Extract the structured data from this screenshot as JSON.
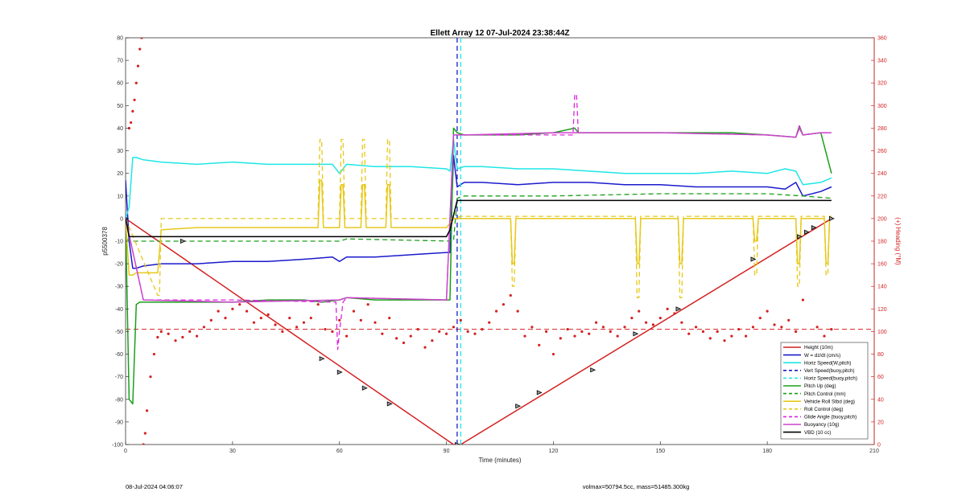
{
  "chart_data": {
    "type": "line",
    "title": "Ellett Array 12 07-Jul-2024 23:38:44Z",
    "xlabel": "Time (minutes)",
    "ylabel_left": "p5500378",
    "ylabel_right": "(+) Heading (°M)",
    "xlim": [
      0,
      210
    ],
    "ylim_left": [
      -100,
      80
    ],
    "ylim_right": [
      0,
      360
    ],
    "x_ticks": [
      "0",
      "30",
      "60",
      "90",
      "120",
      "150",
      "180",
      "210"
    ],
    "y_ticks_left": [
      "80",
      "70",
      "60",
      "50",
      "40",
      "30",
      "20",
      "10",
      "0",
      "-10",
      "-20",
      "-30",
      "-40",
      "-50",
      "-60",
      "-70",
      "-80",
      "-90",
      "-100"
    ],
    "y_ticks_right": [
      "360",
      "340",
      "320",
      "300",
      "280",
      "260",
      "240",
      "220",
      "200",
      "180",
      "160",
      "140",
      "120",
      "100",
      "80",
      "60",
      "40",
      "20",
      "0"
    ],
    "grid": false,
    "legend_position": "bottom-right",
    "colors": {
      "height": "#d42020",
      "w": "#1a1acc",
      "horiz_speed": "#1ee6e6",
      "pitch": "#1aa01a",
      "roll": "#e6c81a",
      "glide": "#dd22dd",
      "buoyancy": "#cc44cc",
      "vbd": "#000000",
      "heading": "#d42020"
    },
    "series": [
      {
        "name": "Height (10m)",
        "style": "solid",
        "color_key": "height",
        "x": [
          0,
          92,
          94,
          198
        ],
        "y": [
          0,
          -100,
          -100,
          0
        ]
      },
      {
        "name": "W = dz/dt (cm/s)",
        "style": "solid",
        "color_key": "w",
        "x": [
          0,
          1,
          2,
          3,
          5,
          10,
          20,
          30,
          40,
          50,
          58,
          60,
          62,
          70,
          80,
          90,
          91,
          92,
          93,
          95,
          100,
          110,
          120,
          130,
          140,
          150,
          160,
          170,
          180,
          185,
          188,
          190,
          195,
          198
        ],
        "y": [
          17,
          -10,
          -22,
          -22,
          -21,
          -20,
          -20,
          -19,
          -19,
          -18,
          -17,
          -19,
          -17,
          -17,
          -16,
          -15,
          -15,
          28,
          14,
          16,
          16,
          15,
          16,
          16,
          15,
          15,
          14,
          14,
          14,
          13,
          16,
          10,
          12,
          14
        ]
      },
      {
        "name": "Vert Speed(buoy,pitch)",
        "style": "dashed",
        "color_key": "w",
        "x": [
          93,
          93
        ],
        "y": [
          80,
          -100
        ]
      },
      {
        "name": "Horiz Speed(W,pitch)",
        "style": "solid",
        "color_key": "horiz_speed",
        "x": [
          0,
          1,
          2,
          3,
          5,
          10,
          20,
          30,
          40,
          50,
          58,
          60,
          62,
          70,
          80,
          90,
          91,
          92,
          93,
          95,
          100,
          110,
          120,
          130,
          140,
          150,
          160,
          170,
          180,
          185,
          188,
          190,
          195,
          198
        ],
        "y": [
          0,
          5,
          27,
          27,
          26,
          25,
          24,
          25,
          24,
          24,
          24,
          20,
          24,
          23,
          23,
          22,
          21,
          35,
          22,
          23,
          23,
          22,
          22,
          21,
          20,
          20,
          20,
          21,
          20,
          22,
          21,
          15,
          16,
          18
        ]
      },
      {
        "name": "Horiz Speed(buoy,pitch)",
        "style": "dashed",
        "color_key": "horiz_speed",
        "x": [
          94,
          94
        ],
        "y": [
          80,
          -100
        ]
      },
      {
        "name": "Pitch Up (deg)",
        "style": "solid",
        "color_key": "pitch",
        "x": [
          0,
          1,
          2,
          3,
          4,
          5,
          10,
          20,
          30,
          40,
          50,
          55,
          60,
          62,
          70,
          80,
          90,
          91,
          92,
          93,
          95,
          100,
          110,
          120,
          126,
          127,
          130,
          140,
          150,
          160,
          170,
          180,
          188,
          189,
          190,
          195,
          198
        ],
        "y": [
          0,
          -80,
          -82,
          -38,
          -37,
          -37,
          -37,
          -37,
          -37,
          -36,
          -36,
          -37,
          -36,
          -35,
          -36,
          -36,
          -36,
          -36,
          40,
          38,
          37,
          37,
          37,
          38,
          40,
          38,
          38,
          38,
          38,
          38,
          38,
          37,
          36,
          41,
          37,
          38,
          20
        ]
      },
      {
        "name": "Pitch Control (mm)",
        "style": "dashed",
        "color_key": "pitch",
        "x": [
          0,
          2,
          10,
          30,
          60,
          62,
          92,
          93,
          95,
          120,
          150,
          180,
          190,
          198
        ],
        "y": [
          -9,
          -10,
          -10,
          -10,
          -10,
          -9,
          -10,
          9,
          10,
          10,
          11,
          11,
          10,
          9
        ]
      },
      {
        "name": "Vehicle Roll Stbd (deg)",
        "style": "solid",
        "color_key": "roll",
        "x": [
          0,
          1,
          2,
          3,
          5,
          9,
          10,
          20,
          50,
          54,
          54.5,
          55,
          55.5,
          60,
          60.5,
          61,
          61.5,
          66,
          66.5,
          67,
          67.5,
          73,
          73.5,
          74,
          74.5,
          90,
          92,
          95,
          108,
          108.5,
          109,
          109.5,
          143,
          143.5,
          144,
          144.5,
          155,
          155.5,
          156,
          156.5,
          176,
          176.5,
          177,
          177.5,
          188,
          188.5,
          189,
          189.5,
          196,
          196.5,
          197,
          197.5,
          198
        ],
        "y": [
          0,
          -25,
          -25,
          -24,
          -24,
          -24,
          -5,
          -4,
          -4,
          -4,
          17,
          17,
          -4,
          -4,
          15,
          15,
          -4,
          -4,
          15,
          15,
          -4,
          -4,
          15,
          15,
          -4,
          -4,
          0,
          0,
          0,
          -20,
          -20,
          0,
          0,
          -20,
          -20,
          0,
          0,
          -20,
          -20,
          0,
          0,
          -10,
          -10,
          0,
          0,
          -20,
          -20,
          0,
          0,
          -20,
          -20,
          0,
          0
        ]
      },
      {
        "name": "Roll Control (deg)",
        "style": "dashed",
        "color_key": "roll",
        "x": [
          0,
          9,
          9.5,
          10,
          54,
          54.5,
          55,
          55.5,
          60,
          60.5,
          61,
          61.5,
          66,
          66.5,
          67,
          67.5,
          73,
          73.5,
          74,
          74.5,
          92,
          94,
          108,
          108.5,
          109,
          109.5,
          143,
          143.5,
          144,
          144.5,
          155,
          155.5,
          156,
          156.5,
          176,
          176.5,
          177,
          177.5,
          188,
          188.5,
          189,
          189.5,
          196,
          196.5,
          197,
          197.5,
          198
        ],
        "y": [
          0,
          -34,
          -34,
          0,
          0,
          35,
          35,
          0,
          0,
          35,
          35,
          0,
          0,
          35,
          35,
          0,
          0,
          35,
          35,
          0,
          0,
          1,
          1,
          -30,
          -30,
          1,
          1,
          -35,
          -35,
          1,
          1,
          -35,
          -35,
          1,
          1,
          -25,
          -25,
          1,
          1,
          -30,
          -30,
          1,
          1,
          -25,
          -25,
          1,
          1
        ]
      },
      {
        "name": "Glide Angle (buoy,pitch)",
        "style": "dashed",
        "color_key": "glide",
        "x": [
          0,
          5,
          30,
          59,
          59.5,
          60,
          61,
          62,
          90,
          92,
          95,
          120,
          125.5,
          126,
          126.5,
          127,
          150,
          180,
          188,
          189,
          190,
          195,
          198
        ],
        "y": [
          0,
          -36,
          -36,
          -37,
          -58,
          -50,
          -37,
          -35,
          -36,
          37,
          37,
          37,
          37,
          55,
          55,
          38,
          38,
          37,
          36,
          41,
          37,
          38,
          38
        ]
      },
      {
        "name": "Buoyancy (10g)",
        "style": "solid",
        "color_key": "buoyancy",
        "x": [
          0,
          5,
          30,
          60,
          62,
          90,
          92,
          95,
          120,
          150,
          180,
          188,
          189,
          190,
          195,
          198
        ],
        "y": [
          0,
          -36,
          -37,
          -36,
          -35,
          -36,
          37,
          37,
          38,
          38,
          37,
          36,
          40,
          37,
          38,
          38
        ]
      },
      {
        "name": "VBD (10 cc)",
        "style": "solid",
        "color_key": "vbd",
        "x": [
          0,
          1,
          2,
          50,
          90,
          91,
          93,
          120,
          150,
          180,
          198
        ],
        "y": [
          0,
          -8,
          -8,
          -8,
          -8,
          -5,
          8,
          8,
          8,
          8,
          8
        ]
      }
    ],
    "heading_scatter": {
      "axis": "right",
      "color_key": "heading",
      "x": [
        1,
        1.5,
        2,
        2.5,
        3,
        3.5,
        4,
        4.5,
        5,
        5.5,
        6,
        7,
        8,
        9,
        10,
        12,
        14,
        16,
        18,
        20,
        22,
        24,
        26,
        28,
        30,
        32,
        34,
        36,
        38,
        40,
        42,
        44,
        46,
        48,
        50,
        52,
        54,
        56,
        58,
        60,
        62,
        64,
        66,
        68,
        70,
        72,
        74,
        76,
        78,
        80,
        82,
        84,
        86,
        88,
        90,
        92,
        94,
        96,
        98,
        100,
        102,
        104,
        106,
        108,
        110,
        112,
        114,
        116,
        118,
        120,
        122,
        124,
        126,
        128,
        130,
        132,
        134,
        136,
        138,
        140,
        142,
        144,
        146,
        148,
        150,
        152,
        154,
        156,
        158,
        160,
        162,
        164,
        166,
        168,
        170,
        172,
        174,
        176,
        178,
        180,
        182,
        184,
        186,
        188,
        190,
        192,
        194,
        196,
        198
      ],
      "y": [
        280,
        285,
        295,
        305,
        320,
        335,
        350,
        360,
        0,
        10,
        30,
        60,
        80,
        95,
        100,
        98,
        92,
        95,
        100,
        96,
        104,
        110,
        118,
        112,
        120,
        124,
        118,
        108,
        112,
        115,
        106,
        100,
        112,
        104,
        108,
        112,
        124,
        102,
        100,
        110,
        96,
        118,
        110,
        124,
        108,
        98,
        112,
        94,
        90,
        96,
        102,
        86,
        92,
        100,
        98,
        104,
        110,
        100,
        98,
        102,
        108,
        118,
        124,
        132,
        118,
        96,
        104,
        88,
        100,
        80,
        94,
        102,
        96,
        100,
        98,
        108,
        104,
        100,
        96,
        104,
        112,
        118,
        108,
        106,
        112,
        120,
        116,
        108,
        98,
        104,
        100,
        94,
        100,
        92,
        96,
        102,
        96,
        104,
        112,
        118,
        106,
        104,
        110,
        100,
        128,
        88,
        104,
        96,
        102
      ]
    },
    "reference_line": {
      "axis": "left",
      "y": -49,
      "style": "dashed",
      "color_key": "height"
    },
    "markers": {
      "x": [
        0,
        16,
        55,
        60,
        67,
        74,
        93,
        110,
        116,
        131,
        143,
        155,
        176,
        189,
        191,
        193,
        198
      ],
      "y": [
        0,
        -10,
        -62,
        -68,
        -75,
        -82,
        -100,
        -83,
        -77,
        -67,
        -51,
        -40,
        -18,
        -8,
        -6,
        -4,
        0
      ]
    },
    "legend": [
      {
        "label": "Height (10m)",
        "color_key": "height",
        "style": "solid"
      },
      {
        "label": "W = dz/dt (cm/s)",
        "color_key": "w",
        "style": "solid"
      },
      {
        "label": "Horiz Speed(W,pitch)",
        "color_key": "horiz_speed",
        "style": "solid"
      },
      {
        "label": "Vert Speed(buoy,pitch)",
        "color_key": "w",
        "style": "dashed"
      },
      {
        "label": "Horiz Speed(buoy,pitch)",
        "color_key": "horiz_speed",
        "style": "dashed"
      },
      {
        "label": "Pitch Up (deg)",
        "color_key": "pitch",
        "style": "solid"
      },
      {
        "label": "Pitch Control (mm)",
        "color_key": "pitch",
        "style": "dashed"
      },
      {
        "label": "Vehicle Roll Stbd (deg)",
        "color_key": "roll",
        "style": "solid"
      },
      {
        "label": "Roll Control (deg)",
        "color_key": "roll",
        "style": "dashed"
      },
      {
        "label": "Glide Angle (buoy,pitch)",
        "color_key": "glide",
        "style": "dashed"
      },
      {
        "label": "Buoyancy (10g)",
        "color_key": "buoyancy",
        "style": "solid"
      },
      {
        "label": "VBD (10 cc)",
        "color_key": "vbd",
        "style": "solid"
      }
    ]
  },
  "footer": {
    "timestamp": "08-Jul-2024 04:06:07",
    "volume_mass": "volmax=50794.5cc, mass=51485.300kg"
  }
}
